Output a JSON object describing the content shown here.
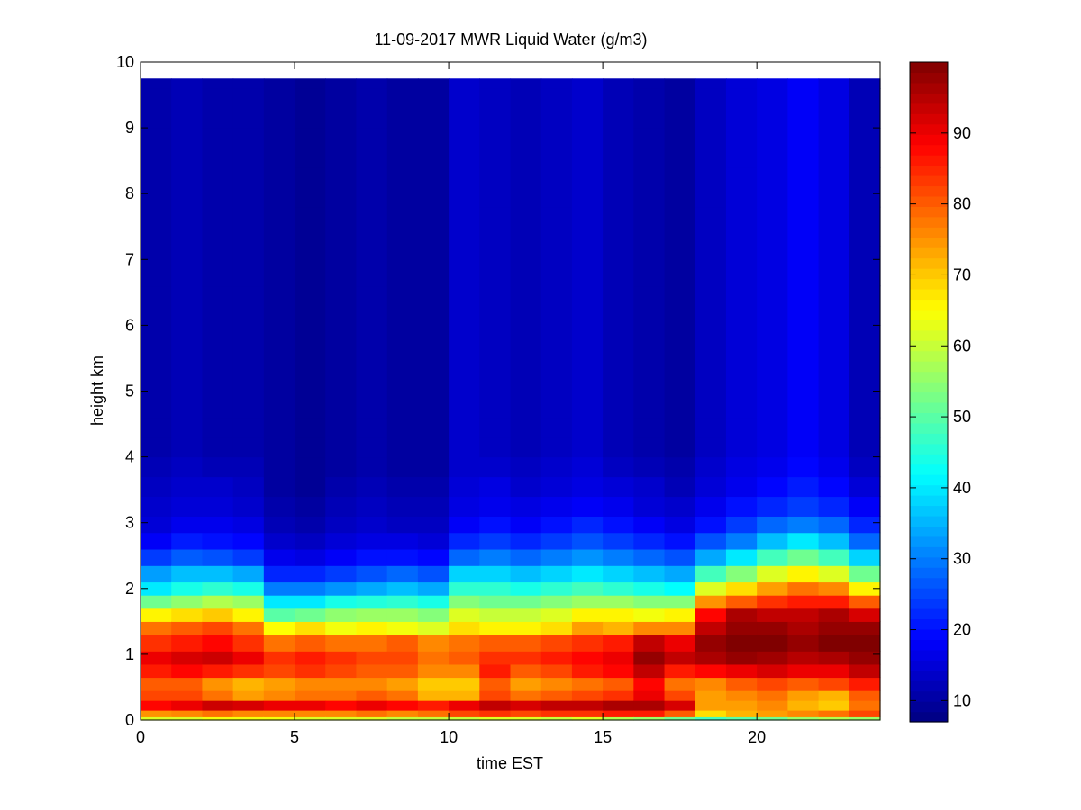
{
  "chart_data": {
    "type": "heatmap",
    "title": "11-09-2017 MWR Liquid Water (g/m3)",
    "xlabel": "time EST",
    "ylabel": "height km",
    "xlim": [
      0,
      24
    ],
    "ylim": [
      0,
      10
    ],
    "x_ticks": [
      "0",
      "5",
      "10",
      "15",
      "20"
    ],
    "y_ticks": [
      "0",
      "1",
      "2",
      "3",
      "4",
      "5",
      "6",
      "7",
      "8",
      "9",
      "10"
    ],
    "colorbar": {
      "range": [
        7,
        100
      ],
      "ticks": [
        "10",
        "20",
        "30",
        "40",
        "50",
        "60",
        "70",
        "80",
        "90"
      ],
      "colormap": "jet"
    },
    "time_step_hours": 1,
    "x": [
      0,
      1,
      2,
      3,
      4,
      5,
      6,
      7,
      8,
      9,
      10,
      11,
      12,
      13,
      14,
      15,
      16,
      17,
      18,
      19,
      20,
      21,
      22,
      23
    ],
    "height_km": [
      0,
      0.05,
      0.15,
      0.3,
      0.45,
      0.65,
      0.85,
      1.05,
      1.3,
      1.5,
      1.7,
      1.9,
      2.1,
      2.35,
      2.6,
      2.85,
      3.1,
      3.4,
      3.7,
      4.0,
      4.3,
      4.6,
      5.0,
      5.4,
      6.0,
      6.6,
      7.2,
      7.8,
      8.4,
      9.0,
      9.6,
      9.75
    ],
    "z": [
      [
        62,
        75,
        88,
        82,
        80,
        86,
        90,
        84,
        78,
        66,
        52,
        40,
        33,
        24,
        18,
        15,
        14,
        13,
        12,
        11,
        11,
        11,
        11,
        11,
        11,
        11,
        11,
        11,
        11,
        11,
        11,
        11
      ],
      [
        62,
        76,
        90,
        82,
        80,
        88,
        92,
        86,
        80,
        68,
        55,
        44,
        36,
        27,
        21,
        17,
        15,
        14,
        13,
        12,
        12,
        12,
        12,
        12,
        12,
        12,
        12,
        12,
        12,
        12,
        12,
        12
      ],
      [
        64,
        78,
        93,
        78,
        75,
        86,
        93,
        88,
        82,
        70,
        58,
        46,
        36,
        26,
        20,
        17,
        15,
        14,
        12,
        11,
        11,
        11,
        11,
        11,
        11,
        11,
        11,
        11,
        11,
        11,
        11,
        11
      ],
      [
        64,
        76,
        92,
        74,
        72,
        84,
        90,
        84,
        78,
        66,
        56,
        44,
        34,
        24,
        19,
        16,
        14,
        13,
        12,
        11,
        11,
        11,
        11,
        11,
        11,
        11,
        11,
        11,
        11,
        11,
        11,
        11
      ],
      [
        64,
        76,
        90,
        76,
        74,
        82,
        84,
        78,
        65,
        50,
        40,
        30,
        22,
        17,
        14,
        12,
        11,
        10,
        10,
        10,
        10,
        10,
        10,
        10,
        10,
        10,
        10,
        10,
        10,
        10,
        10,
        10
      ],
      [
        62,
        76,
        90,
        78,
        76,
        84,
        86,
        80,
        68,
        52,
        40,
        30,
        22,
        16,
        13,
        11,
        10,
        9,
        9,
        9,
        9,
        9,
        9,
        9,
        9,
        9,
        9,
        9,
        9,
        9,
        9,
        9
      ],
      [
        62,
        76,
        88,
        78,
        76,
        82,
        84,
        78,
        64,
        55,
        44,
        32,
        24,
        18,
        15,
        13,
        12,
        11,
        10,
        10,
        10,
        10,
        10,
        10,
        10,
        10,
        10,
        10,
        10,
        10,
        10,
        10
      ],
      [
        62,
        78,
        90,
        80,
        76,
        80,
        82,
        78,
        66,
        56,
        45,
        34,
        26,
        20,
        16,
        14,
        13,
        12,
        11,
        11,
        11,
        11,
        11,
        11,
        11,
        11,
        11,
        11,
        11,
        11,
        11,
        11
      ],
      [
        60,
        76,
        88,
        78,
        74,
        80,
        82,
        80,
        64,
        56,
        46,
        36,
        28,
        20,
        16,
        13,
        12,
        11,
        10,
        10,
        10,
        10,
        10,
        10,
        10,
        10,
        10,
        10,
        10,
        10,
        10,
        10
      ],
      [
        60,
        78,
        86,
        72,
        70,
        76,
        78,
        76,
        62,
        54,
        44,
        34,
        26,
        19,
        15,
        13,
        12,
        11,
        10,
        10,
        10,
        10,
        10,
        10,
        10,
        10,
        10,
        10,
        10,
        10,
        10,
        10
      ],
      [
        60,
        82,
        90,
        72,
        70,
        76,
        80,
        78,
        68,
        62,
        54,
        46,
        38,
        28,
        22,
        18,
        16,
        15,
        14,
        14,
        14,
        14,
        14,
        14,
        14,
        14,
        14,
        14,
        14,
        14,
        14,
        14
      ],
      [
        62,
        84,
        94,
        82,
        80,
        86,
        84,
        80,
        66,
        60,
        52,
        46,
        38,
        30,
        24,
        20,
        17,
        16,
        14,
        13,
        13,
        13,
        13,
        13,
        13,
        13,
        13,
        13,
        13,
        13,
        13,
        13
      ],
      [
        62,
        82,
        92,
        78,
        74,
        80,
        84,
        80,
        66,
        60,
        52,
        44,
        36,
        28,
        22,
        18,
        16,
        14,
        13,
        12,
        12,
        12,
        12,
        12,
        12,
        12,
        12,
        12,
        12,
        12,
        12,
        12
      ],
      [
        60,
        84,
        94,
        80,
        76,
        82,
        86,
        82,
        68,
        62,
        54,
        46,
        38,
        30,
        24,
        20,
        17,
        15,
        14,
        13,
        13,
        13,
        13,
        13,
        13,
        13,
        13,
        13,
        13,
        13,
        13,
        13
      ],
      [
        62,
        84,
        94,
        82,
        78,
        86,
        88,
        84,
        74,
        66,
        56,
        48,
        40,
        32,
        26,
        22,
        18,
        16,
        15,
        14,
        14,
        14,
        14,
        14,
        14,
        14,
        14,
        14,
        14,
        14,
        14,
        14
      ],
      [
        58,
        86,
        96,
        84,
        80,
        88,
        90,
        86,
        72,
        66,
        56,
        46,
        38,
        30,
        24,
        20,
        17,
        15,
        13,
        12,
        12,
        12,
        12,
        12,
        12,
        12,
        12,
        12,
        12,
        12,
        12,
        12
      ],
      [
        56,
        86,
        96,
        90,
        88,
        94,
        98,
        94,
        76,
        64,
        54,
        44,
        36,
        28,
        22,
        18,
        15,
        14,
        12,
        11,
        11,
        11,
        11,
        11,
        11,
        11,
        11,
        11,
        11,
        11,
        11,
        11
      ],
      [
        52,
        80,
        92,
        82,
        78,
        86,
        94,
        90,
        76,
        66,
        54,
        42,
        34,
        26,
        20,
        16,
        14,
        12,
        11,
        10,
        10,
        10,
        10,
        10,
        10,
        10,
        10,
        10,
        10,
        10,
        10,
        10
      ],
      [
        48,
        68,
        74,
        74,
        76,
        88,
        96,
        98,
        94,
        88,
        75,
        62,
        48,
        34,
        26,
        20,
        17,
        15,
        14,
        13,
        13,
        13,
        13,
        13,
        13,
        13,
        13,
        13,
        13,
        13,
        13,
        13
      ],
      [
        50,
        72,
        74,
        76,
        80,
        90,
        98,
        100,
        98,
        96,
        80,
        68,
        54,
        40,
        30,
        24,
        20,
        17,
        16,
        15,
        15,
        15,
        15,
        15,
        15,
        15,
        15,
        15,
        15,
        15,
        15,
        15
      ],
      [
        52,
        74,
        76,
        78,
        82,
        92,
        97,
        100,
        98,
        94,
        84,
        74,
        62,
        48,
        36,
        28,
        22,
        19,
        17,
        16,
        16,
        16,
        16,
        16,
        16,
        16,
        16,
        16,
        16,
        16,
        16,
        16
      ],
      [
        56,
        76,
        72,
        74,
        80,
        90,
        95,
        98,
        96,
        94,
        86,
        78,
        66,
        52,
        40,
        30,
        24,
        21,
        19,
        18,
        18,
        18,
        18,
        18,
        18,
        18,
        18,
        18,
        18,
        18,
        18,
        18
      ],
      [
        58,
        78,
        70,
        72,
        82,
        90,
        96,
        100,
        98,
        96,
        86,
        76,
        62,
        48,
        36,
        28,
        22,
        19,
        17,
        16,
        16,
        16,
        16,
        16,
        16,
        16,
        16,
        16,
        16,
        16,
        16,
        16
      ],
      [
        56,
        82,
        78,
        80,
        86,
        94,
        98,
        100,
        98,
        92,
        80,
        66,
        52,
        38,
        28,
        22,
        18,
        15,
        13,
        12,
        12,
        12,
        12,
        12,
        12,
        12,
        12,
        12,
        12,
        12,
        12,
        12
      ]
    ]
  }
}
